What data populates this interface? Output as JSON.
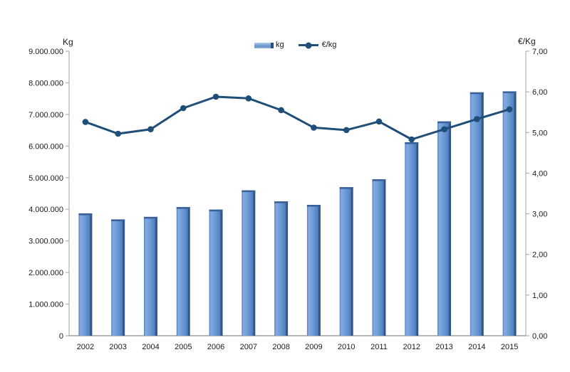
{
  "chart_data": {
    "type": "bar",
    "subtype": "combo-bar-line-dual-axis",
    "categories": [
      "2002",
      "2003",
      "2004",
      "2005",
      "2006",
      "2007",
      "2008",
      "2009",
      "2010",
      "2011",
      "2012",
      "2013",
      "2014",
      "2015"
    ],
    "series": [
      {
        "name": "kg",
        "type": "bar",
        "axis": "left",
        "values": [
          3870000,
          3680000,
          3760000,
          4070000,
          3990000,
          4600000,
          4250000,
          4140000,
          4700000,
          4950000,
          6120000,
          6780000,
          7700000,
          7730000
        ]
      },
      {
        "name": "€/kg",
        "type": "line",
        "axis": "right",
        "values": [
          5.26,
          4.97,
          5.08,
          5.6,
          5.88,
          5.84,
          5.55,
          5.12,
          5.06,
          5.27,
          4.83,
          5.08,
          5.33,
          5.57
        ]
      }
    ],
    "left_axis": {
      "label": "Kg",
      "min": 0,
      "max": 9000000,
      "step": 1000000,
      "tick_labels": [
        "9.000.000",
        "8.000.000",
        "7.000.000",
        "6.000.000",
        "5.000.000",
        "4.000.000",
        "3.000.000",
        "2.000.000",
        "1.000.000",
        "0"
      ]
    },
    "right_axis": {
      "label": "€/Kg",
      "min": 0,
      "max": 7,
      "step": 1,
      "tick_labels": [
        "7,00",
        "6,00",
        "5,00",
        "4,00",
        "3,00",
        "2,00",
        "1,00",
        "0,00"
      ]
    },
    "legend": {
      "position": "top-center",
      "entries": [
        "kg",
        "€/kg"
      ]
    },
    "grid": false,
    "colors": {
      "bar_edge_left": "#4d7cba",
      "bar_light": "#84abe0",
      "bar_main": "#6897d5",
      "bar_shade": "#5180c0",
      "bar_dark": "#2e4d77",
      "bar_cap": "#3a6097",
      "line": "#1f4e79",
      "axis_line": "#a6a6a6",
      "bottom_axis_line": "#8c8c8c",
      "text": "#1a1a1a"
    }
  }
}
